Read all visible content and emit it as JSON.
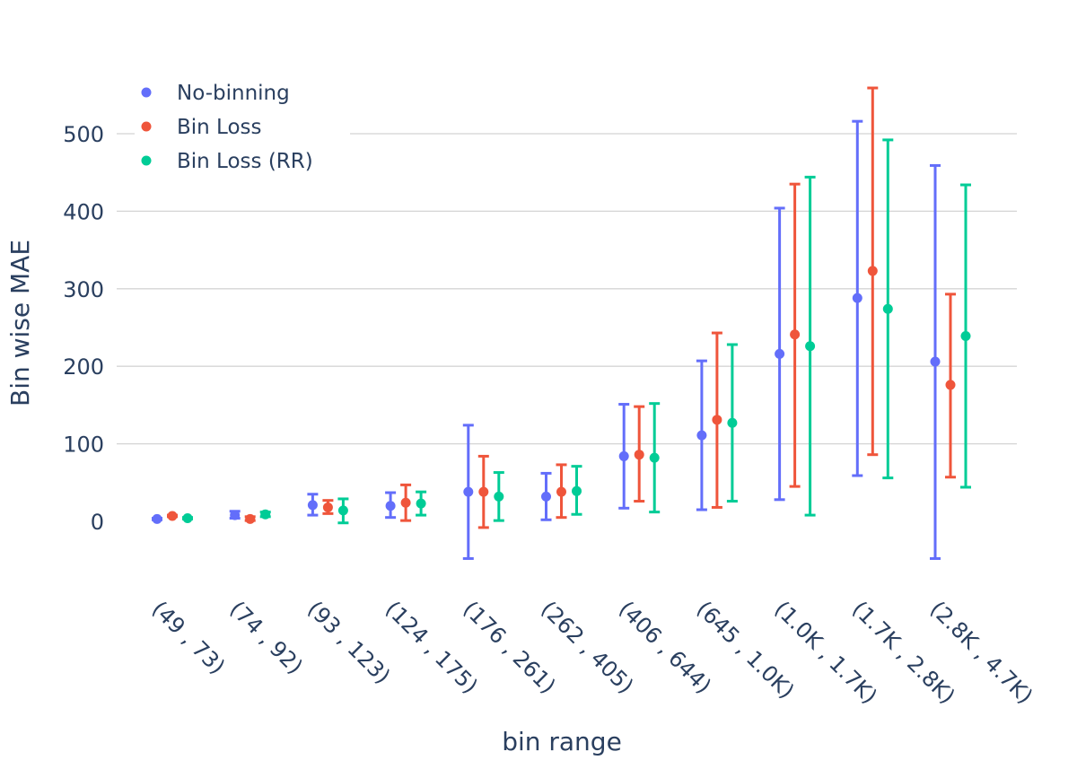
{
  "chart_data": {
    "type": "scatter",
    "xlabel": "bin range",
    "ylabel": "Bin wise MAE",
    "categories": [
      "(49 , 73)",
      "(74 , 92)",
      "(93 , 123)",
      "(124 , 175)",
      "(176 , 261)",
      "(262 , 405)",
      "(406 , 644)",
      "(645 , 1.0K)",
      "(1.0K , 1.7K)",
      "(1.7K , 2.8K)",
      "(2.8K , 4.7K)"
    ],
    "ylim": [
      -78,
      575
    ],
    "yticks": [
      0,
      100,
      200,
      300,
      400,
      500
    ],
    "grid": true,
    "legend_position": "top-left",
    "series": [
      {
        "name": "No-binning",
        "color": "#636efa",
        "values": [
          3,
          8,
          21,
          20,
          38,
          32,
          84,
          111,
          216,
          288,
          206
        ],
        "error_low": [
          2,
          4,
          8,
          5,
          -48,
          2,
          17,
          15,
          28,
          59,
          -48
        ],
        "error_high": [
          4,
          13,
          35,
          37,
          124,
          62,
          151,
          207,
          404,
          516,
          459
        ]
      },
      {
        "name": "Bin Loss",
        "color": "#ef553b",
        "values": [
          7,
          3,
          18,
          24,
          38,
          38,
          86,
          131,
          241,
          323,
          176
        ],
        "error_low": [
          6,
          1,
          10,
          1,
          -8,
          5,
          26,
          18,
          45,
          86,
          57
        ],
        "error_high": [
          8,
          6,
          27,
          47,
          84,
          73,
          148,
          243,
          435,
          559,
          293
        ]
      },
      {
        "name": "Bin Loss (RR)",
        "color": "#00cc96",
        "values": [
          4,
          9,
          14,
          23,
          32,
          39,
          82,
          127,
          226,
          274,
          239
        ],
        "error_low": [
          3,
          6,
          -2,
          8,
          1,
          9,
          12,
          26,
          8,
          56,
          44
        ],
        "error_high": [
          5,
          12,
          29,
          38,
          63,
          71,
          152,
          228,
          444,
          492,
          434
        ]
      }
    ]
  }
}
